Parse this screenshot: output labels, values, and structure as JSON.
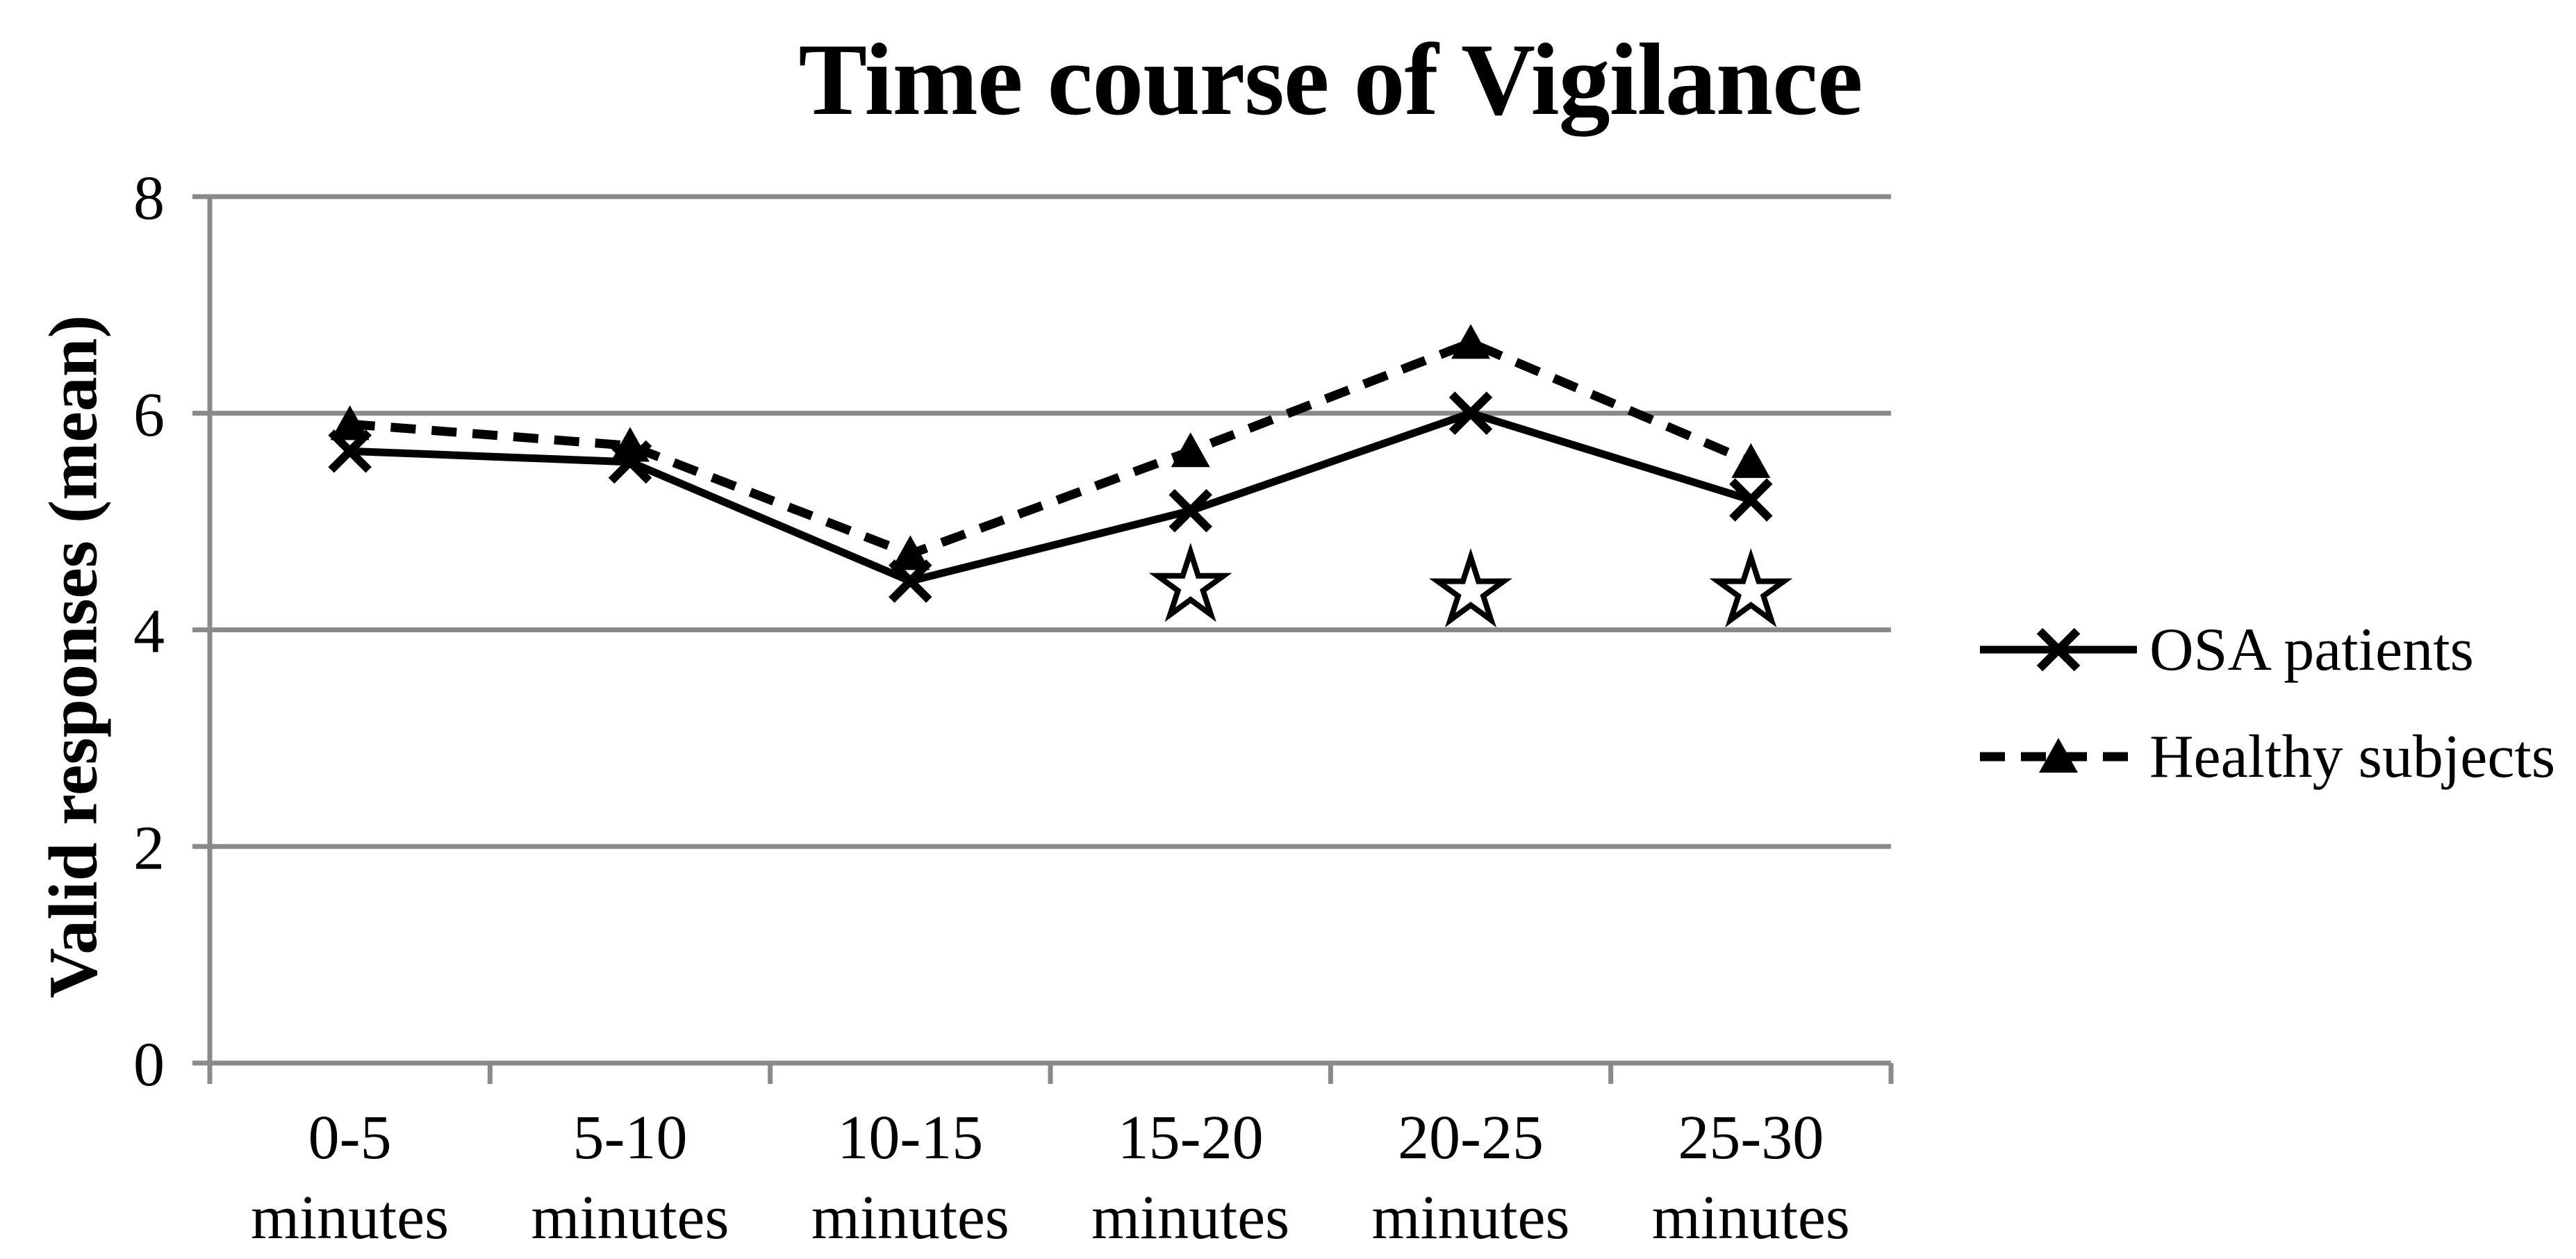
{
  "chart_data": {
    "type": "line",
    "title": "Time course of Vigilance",
    "ylabel": "Valid responses (mean)",
    "xlabel": "",
    "ylim": [
      0,
      8
    ],
    "yticks": [
      0,
      2,
      4,
      6,
      8
    ],
    "grid": "horizontal",
    "legend_position": "right",
    "categories": [
      "0-5 minutes",
      "5-10 minutes",
      "10-15 minutes",
      "15-20 minutes",
      "20-25 minutes",
      "25-30 minutes"
    ],
    "series": [
      {
        "name": "OSA patients",
        "marker": "x",
        "line_style": "solid",
        "color": "#000000",
        "values": [
          5.65,
          5.55,
          4.45,
          5.1,
          6.0,
          5.2
        ]
      },
      {
        "name": "Healthy subjects",
        "marker": "triangle",
        "line_style": "dashed",
        "color": "#000000",
        "values": [
          5.9,
          5.7,
          4.7,
          5.65,
          6.65,
          5.55
        ]
      }
    ],
    "annotations": {
      "symbol": "open-star",
      "points": [
        {
          "category": "15-20 minutes",
          "y": 4.4
        },
        {
          "category": "20-25 minutes",
          "y": 4.35
        },
        {
          "category": "25-30 minutes",
          "y": 4.35
        }
      ]
    },
    "colors": {
      "background": "#ffffff",
      "axis": "#8a8a8a",
      "grid": "#8a8a8a",
      "text": "#000000",
      "series": "#000000"
    }
  }
}
